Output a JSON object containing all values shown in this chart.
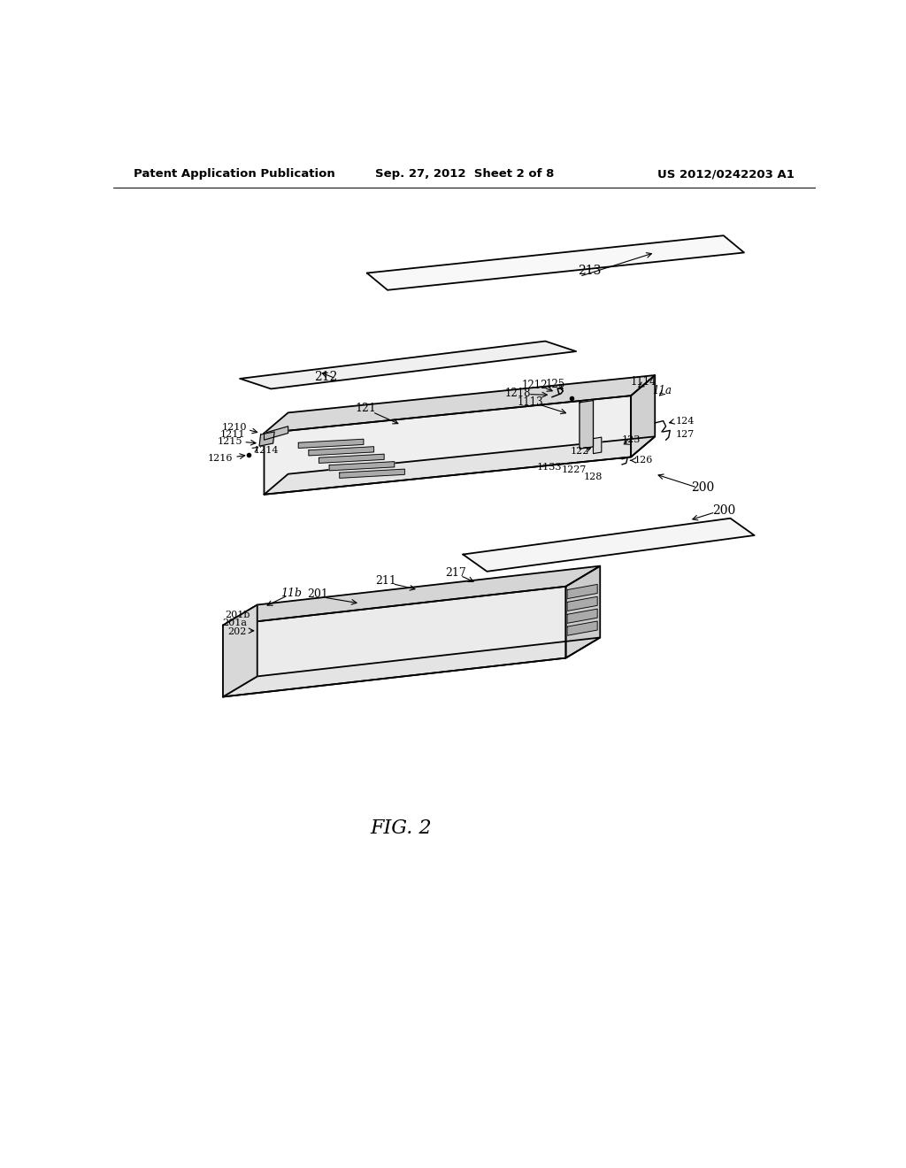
{
  "bg_color": "#ffffff",
  "header_left": "Patent Application Publication",
  "header_mid": "Sep. 27, 2012  Sheet 2 of 8",
  "header_right": "US 2012/0242203 A1",
  "figure_label": "FIG. 2"
}
